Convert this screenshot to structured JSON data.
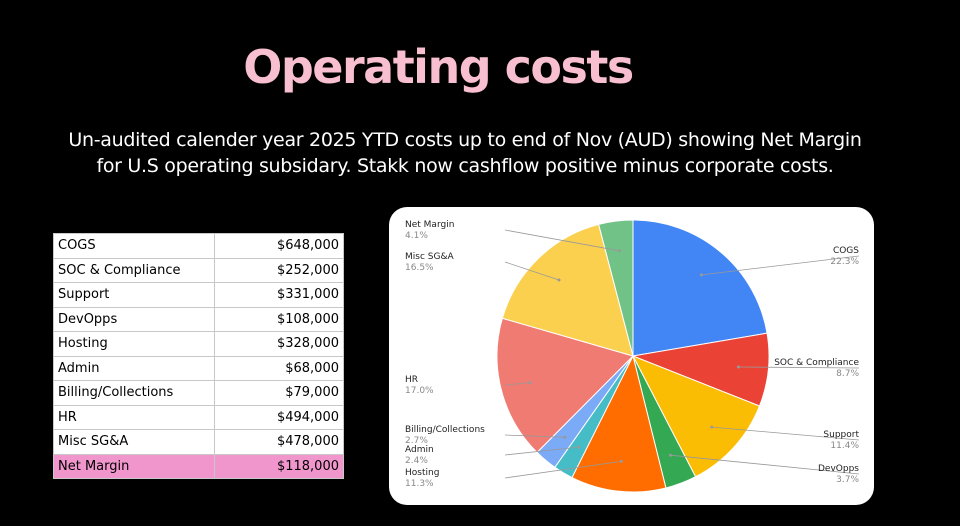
{
  "title": "Operating costs",
  "subtitle_line1": "Un-audited calender year 2025 YTD costs up to end of Nov (AUD) showing Net Margin",
  "subtitle_line2": "for U.S operating subsidary. Stakk now cashflow positive minus corporate costs.",
  "table": [
    {
      "label": "COGS",
      "value": "$648,000"
    },
    {
      "label": "SOC & Compliance",
      "value": "$252,000"
    },
    {
      "label": "Support",
      "value": "$331,000"
    },
    {
      "label": "DevOpps",
      "value": "$108,000"
    },
    {
      "label": "Hosting",
      "value": "$328,000"
    },
    {
      "label": "Admin",
      "value": "$68,000"
    },
    {
      "label": "Billing/Collections",
      "value": "$79,000"
    },
    {
      "label": "HR",
      "value": "$494,000"
    },
    {
      "label": "Misc SG&A",
      "value": "$478,000"
    },
    {
      "label": "Net Margin",
      "value": "$118,000"
    }
  ],
  "highlight_color": "#f196cc",
  "chart_data": {
    "type": "pie",
    "title": "",
    "slices": [
      {
        "label": "COGS",
        "value": 648000,
        "pct": "22.3%",
        "color": "#4285f4"
      },
      {
        "label": "SOC & Compliance",
        "value": 252000,
        "pct": "8.7%",
        "color": "#ea4335"
      },
      {
        "label": "Support",
        "value": 331000,
        "pct": "11.4%",
        "color": "#fbbc04"
      },
      {
        "label": "DevOpps",
        "value": 108000,
        "pct": "3.7%",
        "color": "#34a853"
      },
      {
        "label": "Hosting",
        "value": 328000,
        "pct": "11.3%",
        "color": "#ff6d01"
      },
      {
        "label": "Admin",
        "value": 68000,
        "pct": "2.4%",
        "color": "#46bdc6"
      },
      {
        "label": "Billing/Collections",
        "value": 79000,
        "pct": "2.7%",
        "color": "#7baaf7"
      },
      {
        "label": "HR",
        "value": 494000,
        "pct": "17.0%",
        "color": "#f07b72"
      },
      {
        "label": "Misc SG&A",
        "value": 478000,
        "pct": "16.5%",
        "color": "#fcd04f"
      },
      {
        "label": "Net Margin",
        "value": 118000,
        "pct": "4.1%",
        "color": "#71c287"
      }
    ]
  }
}
